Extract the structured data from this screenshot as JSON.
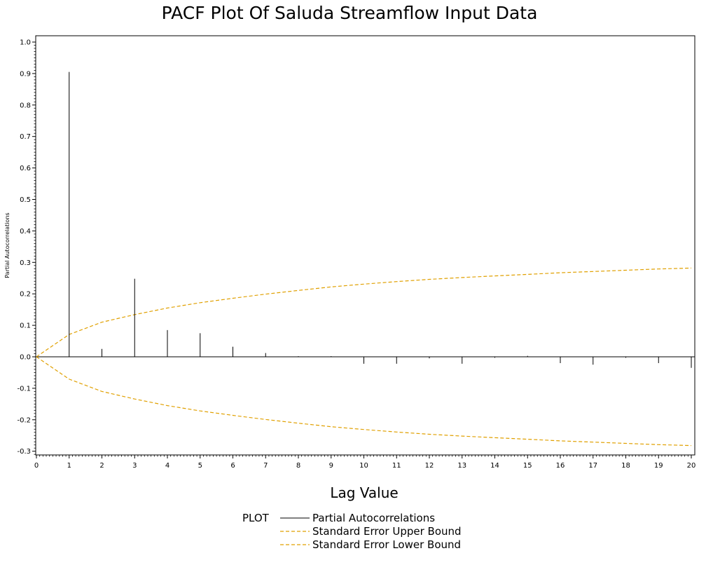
{
  "chart_data": {
    "type": "bar",
    "title": "PACF Plot Of Saluda Streamflow Input Data",
    "xlabel": "Lag Value",
    "ylabel": "Partial Autocorrelations",
    "xlim": [
      0,
      20
    ],
    "ylim": [
      -0.32,
      1.02
    ],
    "x_ticks": [
      0,
      1,
      2,
      3,
      4,
      5,
      6,
      7,
      8,
      9,
      10,
      11,
      12,
      13,
      14,
      15,
      16,
      17,
      18,
      19,
      20
    ],
    "y_ticks": [
      "1.0",
      "0.9",
      "0.8",
      "0.7",
      "0.6",
      "0.5",
      "0.4",
      "0.3",
      "0.2",
      "0.1",
      "0.0",
      "-0.1",
      "-0.2",
      "-0.3"
    ],
    "grid": false,
    "legend_position": "bottom",
    "x": [
      0,
      1,
      2,
      3,
      4,
      5,
      6,
      7,
      8,
      9,
      10,
      11,
      12,
      13,
      14,
      15,
      16,
      17,
      18,
      19,
      20
    ],
    "series": [
      {
        "name": "Partial Autocorrelations",
        "kind": "needle",
        "color": "#000000",
        "x": [
          1,
          2,
          3,
          4,
          5,
          6,
          7,
          8,
          9,
          10,
          11,
          12,
          13,
          14,
          15,
          16,
          17,
          18,
          19,
          20
        ],
        "values": [
          0.905,
          0.025,
          0.248,
          0.085,
          0.075,
          0.032,
          0.012,
          0.002,
          0.002,
          -0.022,
          -0.022,
          -0.005,
          -0.022,
          -0.003,
          0.003,
          -0.02,
          -0.025,
          -0.003,
          -0.02,
          -0.035
        ]
      },
      {
        "name": "Standard Error Upper Bound",
        "kind": "dashed-line",
        "color": "#e0a000",
        "values": [
          0.0,
          0.071,
          0.11,
          0.134,
          0.155,
          0.172,
          0.186,
          0.199,
          0.211,
          0.222,
          0.231,
          0.239,
          0.246,
          0.252,
          0.257,
          0.262,
          0.267,
          0.271,
          0.275,
          0.279,
          0.282
        ]
      },
      {
        "name": "Standard Error Lower Bound",
        "kind": "dashed-line",
        "color": "#e0a000",
        "values": [
          0.0,
          -0.071,
          -0.11,
          -0.134,
          -0.155,
          -0.172,
          -0.186,
          -0.199,
          -0.211,
          -0.222,
          -0.231,
          -0.239,
          -0.246,
          -0.252,
          -0.257,
          -0.262,
          -0.267,
          -0.271,
          -0.275,
          -0.279,
          -0.282
        ]
      }
    ],
    "legend": {
      "title": "PLOT",
      "entries": [
        "Partial Autocorrelations",
        "Standard Error Upper Bound",
        "Standard Error Lower Bound"
      ]
    }
  }
}
